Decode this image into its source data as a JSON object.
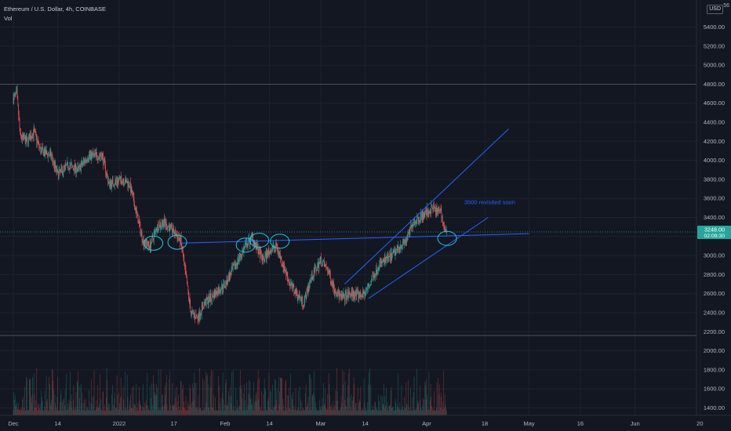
{
  "header": {
    "title": "Ethereum / U.S. Dollar, 4h, COINBASE",
    "volume_label": "Vol",
    "currency_badge": "USD",
    "corner_text": "56"
  },
  "y_axis": {
    "ticks": [
      "5400.00",
      "5200.00",
      "5000.00",
      "4800.00",
      "4600.00",
      "4400.00",
      "4200.00",
      "4000.00",
      "3800.00",
      "3600.00",
      "3400.00",
      "3200.00",
      "3000.00",
      "2800.00",
      "2600.00",
      "2400.00",
      "2200.00",
      "2000.00",
      "1800.00",
      "1600.00",
      "1400.00"
    ],
    "current_price": "3248.00",
    "countdown": "02:09:30"
  },
  "x_axis": {
    "ticks": [
      "Dec",
      "14",
      "2022",
      "17",
      "Feb",
      "14",
      "Mar",
      "14",
      "Apr",
      "18",
      "May",
      "16",
      "Jun",
      "20"
    ]
  },
  "annotation": {
    "text": "3500 revisited soon"
  },
  "colors": {
    "background": "#131722",
    "up": "#26a69a",
    "down": "#ef5350",
    "drawing": "#2962ff",
    "ellipse": "#26c6da",
    "price_badge": "#26a69a"
  },
  "chart_data": {
    "type": "candlestick",
    "symbol": "Ethereum / U.S. Dollar",
    "interval": "4h",
    "exchange": "COINBASE",
    "ylim": [
      1300,
      5600
    ],
    "x_ticks": [
      "Dec",
      "14",
      "2022",
      "17",
      "Feb",
      "14",
      "Mar",
      "14",
      "Apr",
      "18",
      "May",
      "16",
      "Jun",
      "20"
    ],
    "y_ticks": [
      5400,
      5200,
      5000,
      4800,
      4600,
      4400,
      4200,
      4000,
      3800,
      3600,
      3400,
      3200,
      3000,
      2800,
      2600,
      2400,
      2200,
      2000,
      1800,
      1600,
      1400
    ],
    "price_path": [
      [
        "2021-12-01",
        4650
      ],
      [
        "2021-12-02",
        4700
      ],
      [
        "2021-12-03",
        4250
      ],
      [
        "2021-12-05",
        4200
      ],
      [
        "2021-12-07",
        4300
      ],
      [
        "2021-12-09",
        4100
      ],
      [
        "2021-12-12",
        4050
      ],
      [
        "2021-12-14",
        3850
      ],
      [
        "2021-12-17",
        3950
      ],
      [
        "2021-12-20",
        3900
      ],
      [
        "2021-12-23",
        4050
      ],
      [
        "2021-12-27",
        4050
      ],
      [
        "2021-12-29",
        3750
      ],
      [
        "2022-01-02",
        3800
      ],
      [
        "2022-01-04",
        3750
      ],
      [
        "2022-01-06",
        3450
      ],
      [
        "2022-01-08",
        3150
      ],
      [
        "2022-01-10",
        3100
      ],
      [
        "2022-01-12",
        3300
      ],
      [
        "2022-01-14",
        3350
      ],
      [
        "2022-01-17",
        3250
      ],
      [
        "2022-01-19",
        3150
      ],
      [
        "2022-01-21",
        2650
      ],
      [
        "2022-01-22",
        2400
      ],
      [
        "2022-01-24",
        2350
      ],
      [
        "2022-01-26",
        2500
      ],
      [
        "2022-01-29",
        2600
      ],
      [
        "2022-02-01",
        2700
      ],
      [
        "2022-02-04",
        2900
      ],
      [
        "2022-02-07",
        3100
      ],
      [
        "2022-02-09",
        3200
      ],
      [
        "2022-02-10",
        3100
      ],
      [
        "2022-02-12",
        2950
      ],
      [
        "2022-02-14",
        3050
      ],
      [
        "2022-02-16",
        3100
      ],
      [
        "2022-02-18",
        2900
      ],
      [
        "2022-02-20",
        2700
      ],
      [
        "2022-02-22",
        2600
      ],
      [
        "2022-02-24",
        2500
      ],
      [
        "2022-02-26",
        2750
      ],
      [
        "2022-03-01",
        2950
      ],
      [
        "2022-03-03",
        2850
      ],
      [
        "2022-03-05",
        2650
      ],
      [
        "2022-03-07",
        2550
      ],
      [
        "2022-03-10",
        2600
      ],
      [
        "2022-03-12",
        2580
      ],
      [
        "2022-03-14",
        2600
      ],
      [
        "2022-03-16",
        2750
      ],
      [
        "2022-03-18",
        2900
      ],
      [
        "2022-03-20",
        2950
      ],
      [
        "2022-03-22",
        3000
      ],
      [
        "2022-03-24",
        3100
      ],
      [
        "2022-03-26",
        3150
      ],
      [
        "2022-03-28",
        3350
      ],
      [
        "2022-03-30",
        3400
      ],
      [
        "2022-04-01",
        3450
      ],
      [
        "2022-04-03",
        3500
      ],
      [
        "2022-04-04",
        3450
      ],
      [
        "2022-04-05",
        3500
      ],
      [
        "2022-04-06",
        3300
      ],
      [
        "2022-04-07",
        3200
      ],
      [
        "2022-04-07",
        3248
      ]
    ],
    "horizontal_levels": [
      4800,
      2160
    ],
    "current_price": 3248,
    "drawings": {
      "support_line": [
        [
          "2022-01-19",
          3130
        ],
        [
          "2022-05-01",
          3230
        ]
      ],
      "channel_upper": [
        [
          "2022-03-08",
          2700
        ],
        [
          "2022-04-25",
          4330
        ]
      ],
      "channel_lower": [
        [
          "2022-03-15",
          2550
        ],
        [
          "2022-04-19",
          3400
        ]
      ],
      "annotation": "3500 revisited soon",
      "circled_points": [
        [
          "2022-01-11",
          3130
        ],
        [
          "2022-01-18",
          3140
        ],
        [
          "2022-02-07",
          3110
        ],
        [
          "2022-02-11",
          3160
        ],
        [
          "2022-02-17",
          3150
        ],
        [
          "2022-04-07",
          3180
        ]
      ]
    }
  }
}
